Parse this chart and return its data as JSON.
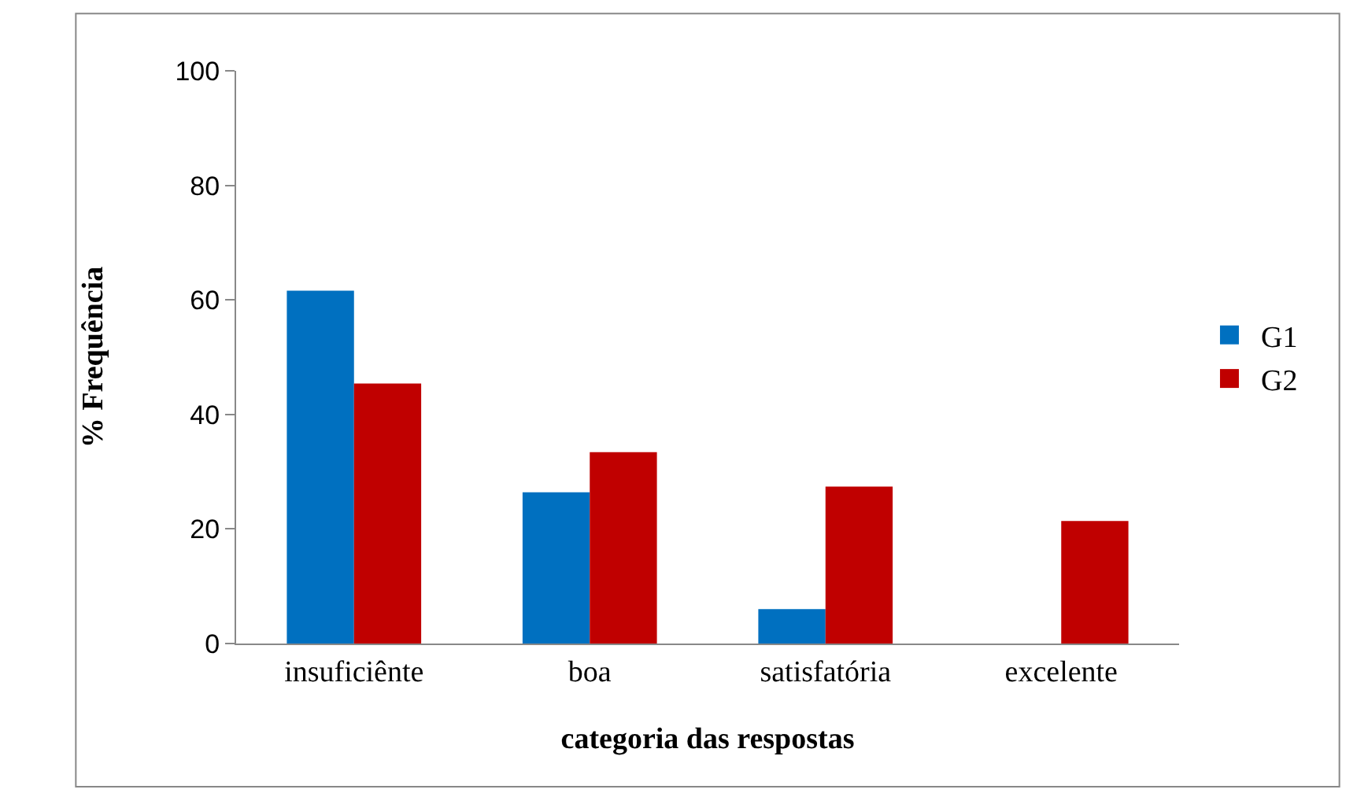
{
  "chart_data": {
    "type": "bar",
    "xlabel": "categoria das respostas",
    "ylabel": "% Frequência",
    "categories": [
      "insuficiênte",
      "boa",
      "satisfatória",
      "excelente"
    ],
    "series": [
      {
        "name": "G1",
        "color": "#0070c0",
        "values": [
          61.6,
          26.4,
          6,
          0
        ]
      },
      {
        "name": "G2",
        "color": "#c00000",
        "values": [
          45.4,
          33.4,
          27.4,
          21.4
        ]
      }
    ],
    "ylim": [
      0,
      100
    ],
    "yticks": [
      0,
      20,
      40,
      60,
      80,
      100
    ],
    "grid": false,
    "legend": "right"
  }
}
